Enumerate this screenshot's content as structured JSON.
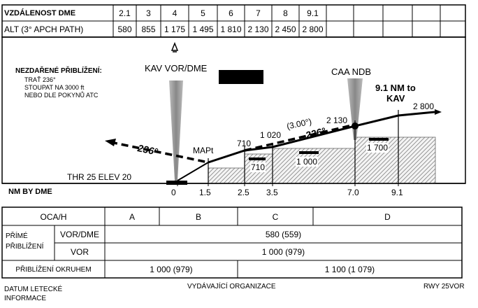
{
  "dme_table": {
    "header_label": "VZDÁLENOST DME",
    "distances": [
      "2.1",
      "3",
      "4",
      "5",
      "6",
      "7",
      "8",
      "9.1"
    ],
    "alt_label": "ALT (3° APCH PATH)",
    "altitudes": [
      "580",
      "855",
      "1 175",
      "1 495",
      "1 810",
      "2 130",
      "2 450",
      "2 800"
    ]
  },
  "profile": {
    "missed_approach": {
      "title": "NEZDAŘENÉ PŘIBLÍŽENÍ:",
      "line1": "TRAŤ 236°",
      "line2": "STOUPAT NA 3000 ft",
      "line3": "NEBO DLE POKYNŮ ATC"
    },
    "vor_dme_label": "KAV VOR/DME",
    "ndb_label": "CAA NDB",
    "nm_to_label": "9.1 NM to",
    "kav_label": "KAV",
    "mapt_label": "MAPt",
    "thr_label": "THR 25 ELEV 20",
    "track_missed": "236°",
    "track_approach": "236°",
    "glide_angle": "(3.00°)",
    "alt_710": "710",
    "alt_1020": "1 020",
    "alt_2130": "2 130",
    "alt_2800": "2 800",
    "obst_710": "710",
    "obst_1000": "1 000",
    "obst_1700": "1 700",
    "nm_by_dme_label": "NM BY DME",
    "nm_marks": [
      "0",
      "1.5",
      "2.5",
      "3.5",
      "7.0",
      "9.1"
    ]
  },
  "oca_table": {
    "header": "OCA/H",
    "categories": [
      "A",
      "B",
      "C",
      "D"
    ],
    "straight_in_label_1": "PŘÍMÉ",
    "straight_in_label_2": "PŘIBLÍŽENÍ",
    "vor_dme_label": "VOR/DME",
    "vor_dme_value": "580 (559)",
    "vor_label": "VOR",
    "vor_value": "1 000 (979)",
    "circling_label": "PŘIBLÍŽENÍ OKRUHEM",
    "circling_ab": "1 000 (979)",
    "circling_cd": "1 100 (1 079)"
  },
  "footer": {
    "left_1": "DATUM LETECKÉ",
    "left_2": "INFORMACE",
    "center": "VYDÁVAJÍCÍ ORGANIZACE",
    "right": "RWY 25VOR"
  }
}
